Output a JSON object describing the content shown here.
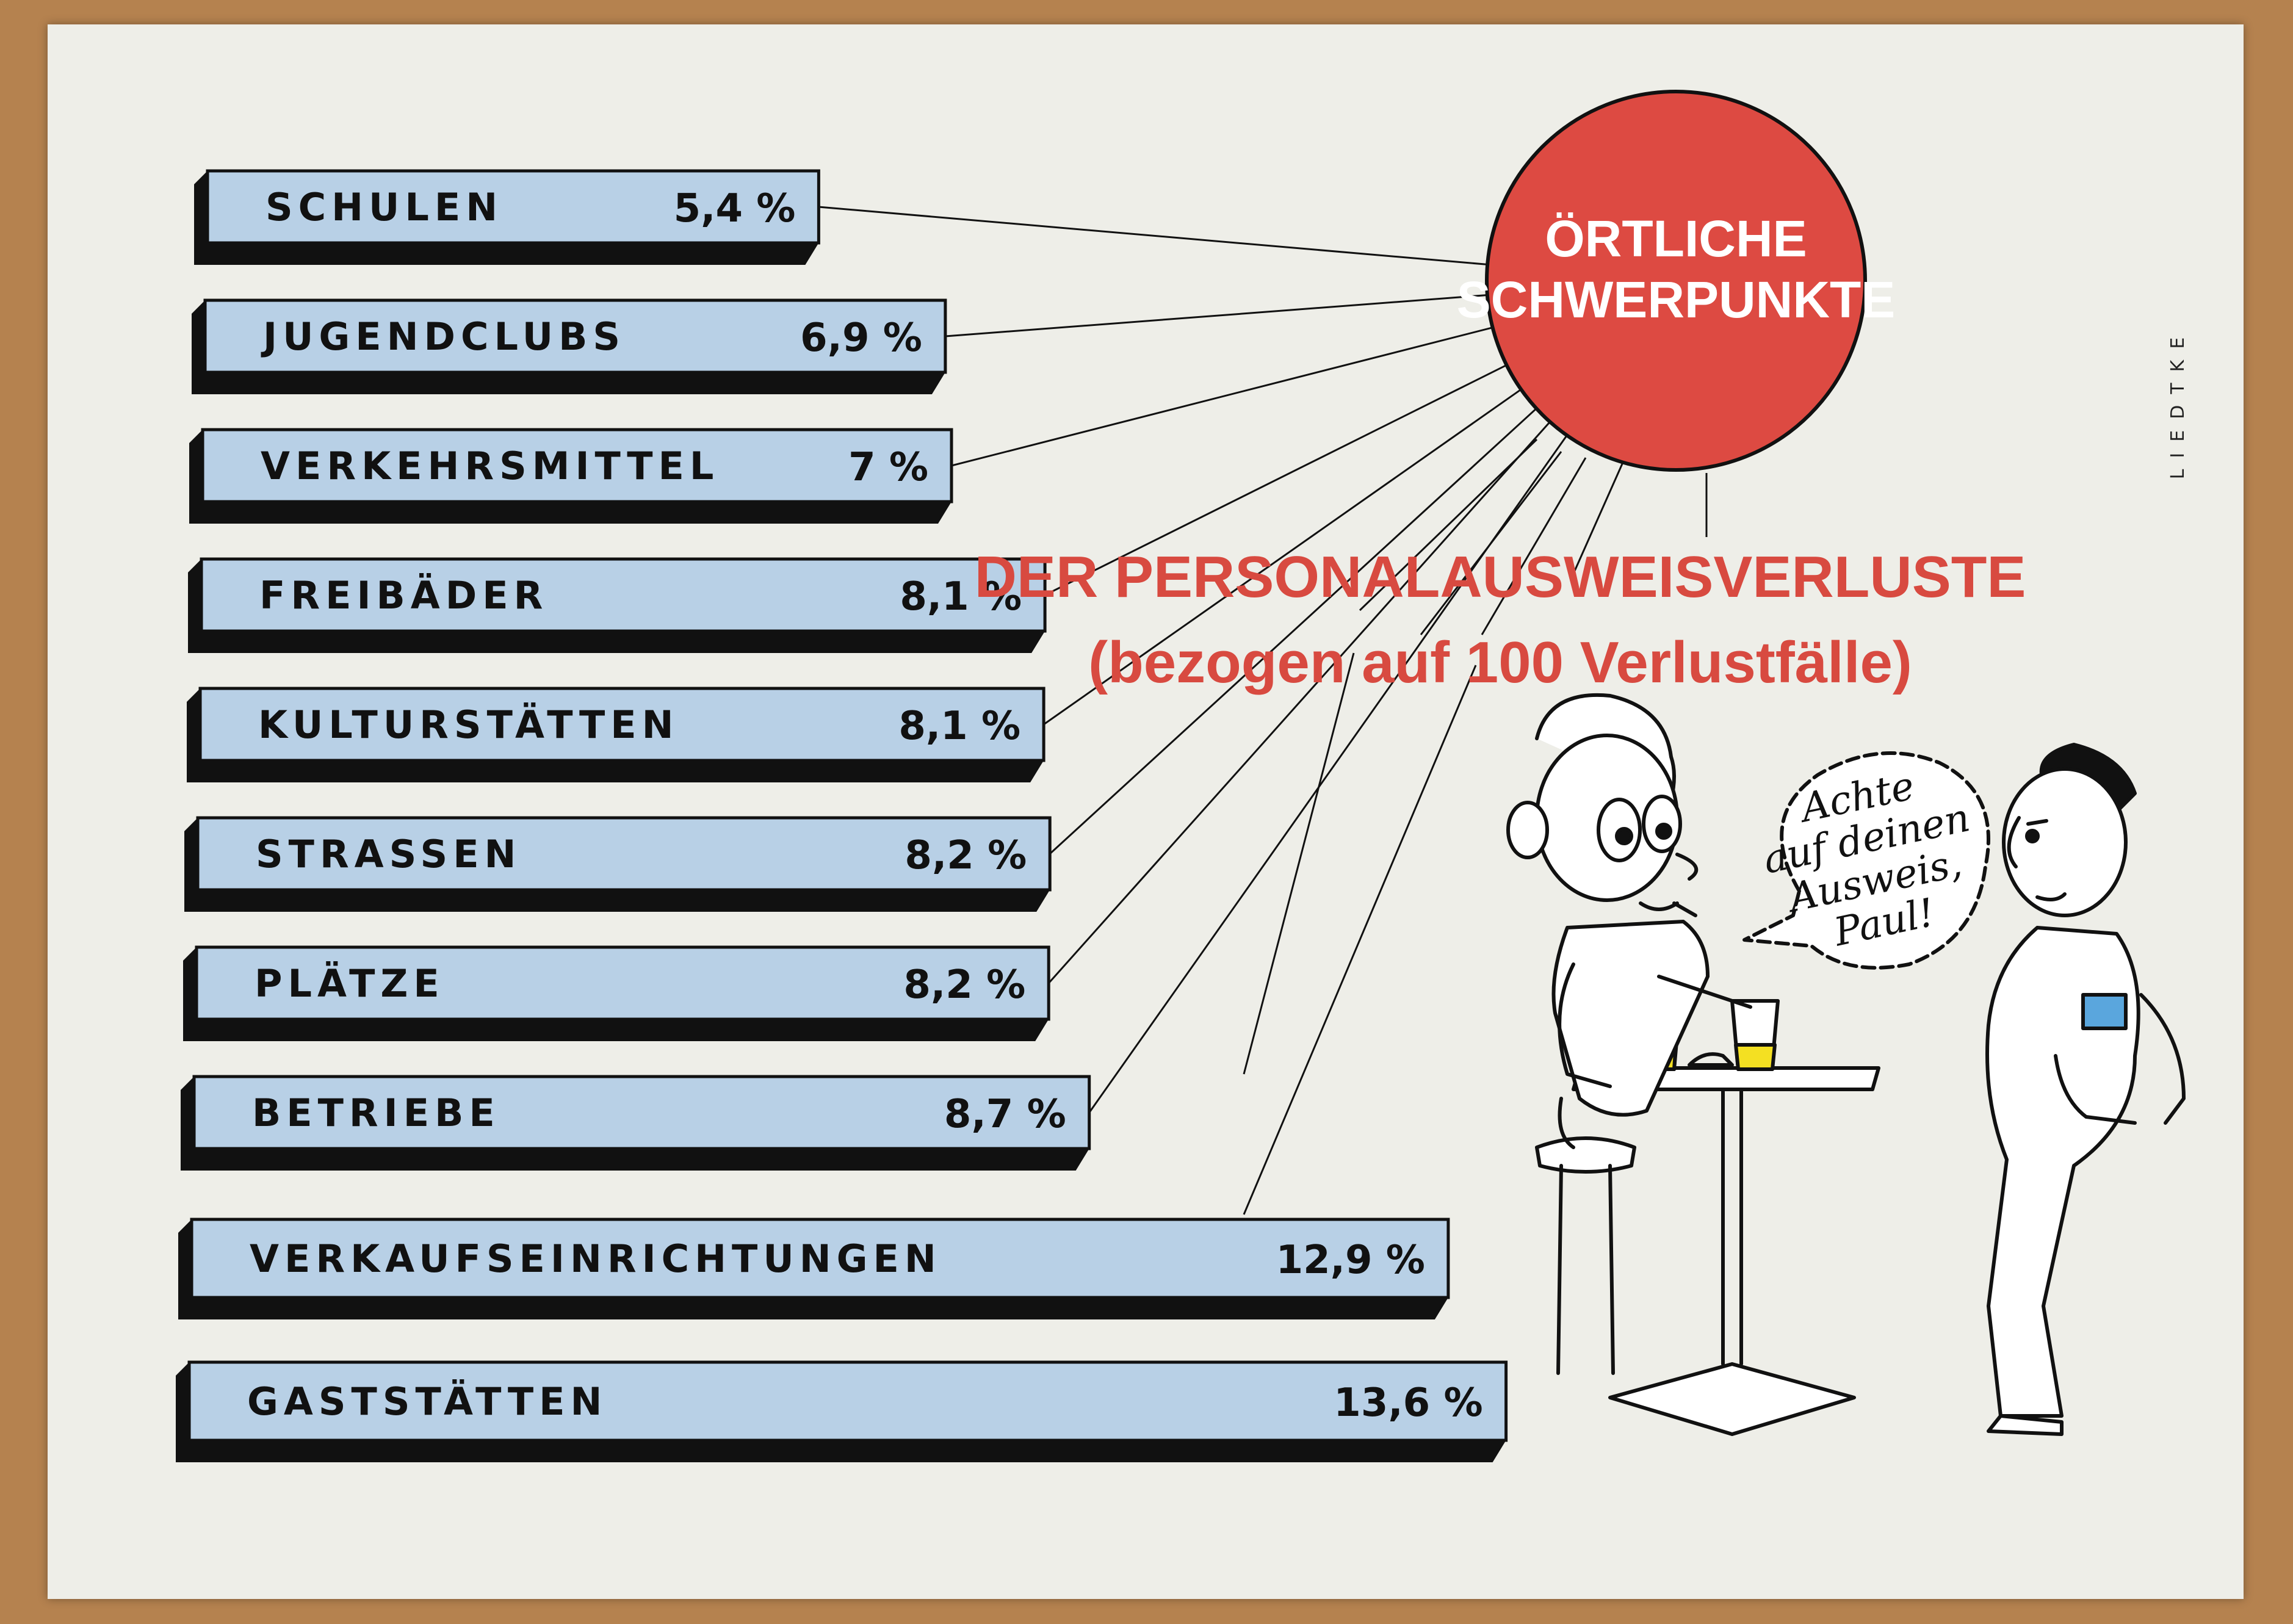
{
  "chart_data": {
    "type": "bar",
    "orientation": "horizontal",
    "title": "ÖRTLICHE SCHWERPUNKTE",
    "subtitle_line1": "DER PERSONALAUSWEISVERLUSTE",
    "subtitle_line2": "(bezogen auf 100 Verlustfälle)",
    "categories": [
      "SCHULEN",
      "JUGENDCLUBS",
      "VERKEHRSMITTEL",
      "FREIBÄDER",
      "KULTURSTÄTTEN",
      "STRASSEN",
      "PLÄTZE",
      "BETRIEBE",
      "VERKAUFSEINRICHTUNGEN",
      "GASTSTÄTTEN"
    ],
    "values": [
      5.4,
      6.9,
      7,
      8.1,
      8.1,
      8.2,
      8.2,
      8.7,
      12.9,
      13.6
    ],
    "value_labels": [
      "5,4 %",
      "6,9 %",
      "7 %",
      "8,1 %",
      "8,1 %",
      "8,2 %",
      "8,2 %",
      "8,7 %",
      "12,9 %",
      "13,6 %"
    ],
    "colors": {
      "bar": "#b8d0e6",
      "shadow": "#111111",
      "circle": "#dd4a42",
      "title_red": "#d84a40"
    },
    "grid": false,
    "legend": "none"
  },
  "artist": "LIEDTKE",
  "speech_bubble": [
    "Achte",
    "auf deinen",
    "Ausweis,",
    "Paul!"
  ]
}
